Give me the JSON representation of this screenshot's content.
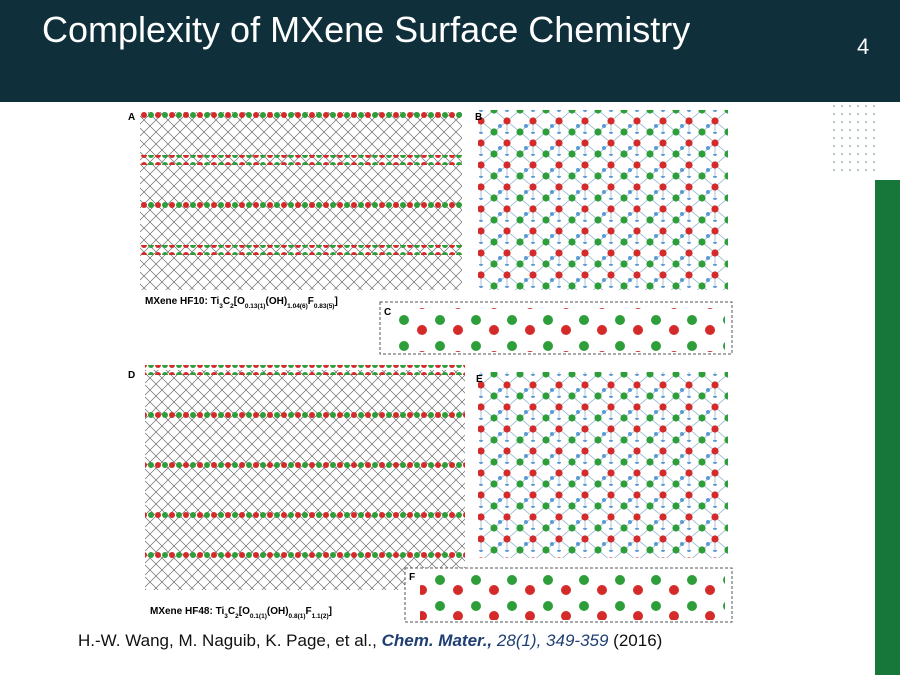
{
  "title": "Complexity of MXene Surface Chemistry",
  "page_number": "4",
  "figure": {
    "panels": [
      "A",
      "B",
      "C",
      "D",
      "E",
      "F"
    ],
    "captions": [
      {
        "segments": [
          "MXene HF10: Ti",
          "3",
          "C",
          "2",
          "[O",
          "0.13(1)",
          "(OH)",
          "1.04(6)",
          "F",
          "0.83(5)",
          "]"
        ]
      },
      {
        "segments": [
          "MXene HF48: Ti",
          "3",
          "C",
          "2",
          "[O",
          "0.1(1)",
          "(OH)",
          "0.8(1)",
          "F",
          "1.1(2)",
          "]"
        ]
      }
    ]
  },
  "citation": {
    "authors": "H.-W. Wang, M. Naguib, K. Page, et al.,",
    "journal": "Chem. Mater.,",
    "volume": "28(1), 349-359",
    "year": "(2016)"
  }
}
